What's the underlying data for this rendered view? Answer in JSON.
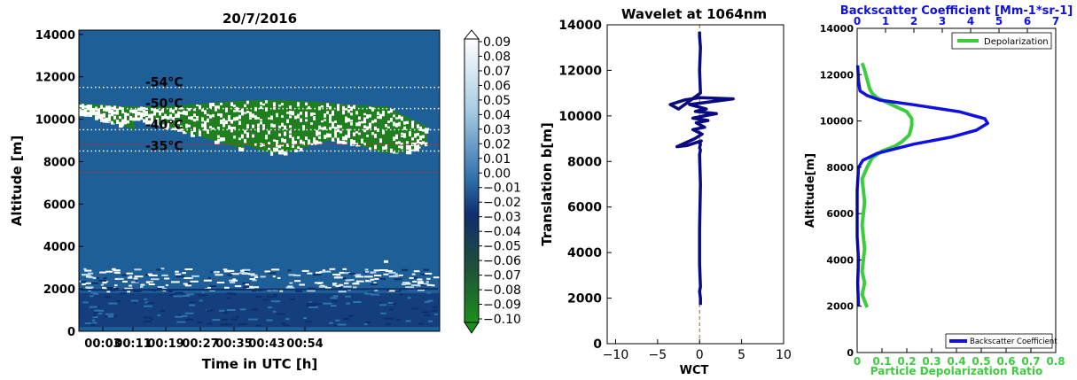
{
  "chart_data": [
    {
      "type": "heatmap",
      "title": "20/7/2016",
      "xlabel": "Time in UTC [h]",
      "ylabel": "Altitude [m]",
      "x_ticks": [
        "00:03",
        "00:11",
        "00:19",
        "00:27",
        "00:35",
        "00:43",
        "00:54"
      ],
      "y_ticks": [
        0,
        2000,
        4000,
        6000,
        8000,
        10000,
        12000,
        14000
      ],
      "ylim": [
        0,
        14200
      ],
      "colorbar_ticks": [
        "0.09",
        "0.08",
        "0.07",
        "0.06",
        "0.05",
        "0.04",
        "0.03",
        "0.02",
        "0.01",
        "0.00",
        "−0.01",
        "−0.02",
        "−0.03",
        "−0.04",
        "−0.05",
        "−0.06",
        "−0.07",
        "−0.08",
        "−0.09",
        "−0.10"
      ],
      "colorbar_range": [
        -0.1,
        0.1
      ],
      "temperature_lines": [
        {
          "label": "-54°C",
          "altitude": 11500
        },
        {
          "label": "-50°C",
          "altitude": 10500
        },
        {
          "label": "-40°C",
          "altitude": 9500
        },
        {
          "label": "-35°C",
          "altitude": 8500
        }
      ],
      "reference_lines_red": [
        8800,
        7500
      ],
      "colors": {
        "background": "#1e5f98",
        "positive": "#ffffff",
        "negative": "#1f7f1f",
        "dark": "#0c2f6b"
      }
    },
    {
      "type": "line",
      "title": "Wavelet at 1064nm",
      "xlabel": "WCT",
      "ylabel": "Translation b[m]",
      "x_ticks": [
        "−10",
        "−5",
        "0",
        "5",
        "10"
      ],
      "y_ticks": [
        0,
        2000,
        4000,
        6000,
        8000,
        10000,
        12000,
        14000
      ],
      "xlim": [
        -11,
        10
      ],
      "ylim": [
        0,
        14000
      ],
      "series": [
        {
          "color": "#0a0a80",
          "x": [
            0.1,
            0.1,
            0.0,
            0.1,
            0.0,
            0.0,
            0.1,
            0.0,
            0.1,
            0.0,
            0.1,
            0.0,
            0.2,
            -1.5,
            -2.7,
            -0.6,
            0.3,
            -0.8,
            0.6,
            -0.4,
            1.0,
            -0.8,
            0.5,
            2.0,
            -0.5,
            0.8,
            -1.2,
            4.0,
            0.0,
            -1.8,
            -3.5,
            -2.5,
            0.1,
            0.0,
            0.1,
            0.0,
            0.0
          ],
          "y": [
            1700,
            2000,
            2300,
            2500,
            3500,
            5000,
            7000,
            8300,
            8500,
            8600,
            8750,
            8800,
            8900,
            8700,
            8650,
            9000,
            9200,
            9400,
            9500,
            9700,
            9800,
            9900,
            10000,
            10100,
            10200,
            10300,
            10500,
            10750,
            10800,
            10700,
            10500,
            10300,
            11000,
            12000,
            13000,
            13500,
            13700
          ]
        }
      ],
      "reference_line_x": 0
    },
    {
      "type": "line",
      "title": "Backscatter Coefficient [Mm-1*sr-1]",
      "xlabel": "Particle Depolarization Ratio",
      "ylabel": "Altitude[m]",
      "x_ticks": [
        "0",
        "0.1",
        "0.2",
        "0.3",
        "0.4",
        "0.5",
        "0.6",
        "0.7",
        "0.8"
      ],
      "x2_ticks": [
        "0",
        "1",
        "2",
        "3",
        "4",
        "5",
        "6",
        "7"
      ],
      "y_ticks": [
        0,
        2000,
        4000,
        6000,
        8000,
        10000,
        12000,
        14000
      ],
      "xlim": [
        0,
        0.8
      ],
      "x2lim": [
        0,
        7
      ],
      "ylim": [
        0,
        14000
      ],
      "legend_top": "top-right",
      "legend_bottom": "bottom-right",
      "series": [
        {
          "name": "Depolarization",
          "color": "#3ecc3e",
          "x": [
            0.04,
            0.02,
            0.03,
            0.02,
            0.03,
            0.02,
            0.03,
            0.02,
            0.04,
            0.06,
            0.1,
            0.15,
            0.18,
            0.21,
            0.22,
            0.22,
            0.2,
            0.16,
            0.12,
            0.08,
            0.06,
            0.05,
            0.04,
            0.03,
            0.02
          ],
          "y": [
            1950,
            2500,
            3000,
            3500,
            4500,
            5500,
            6500,
            7500,
            8000,
            8400,
            8700,
            8900,
            9100,
            9400,
            9800,
            10100,
            10400,
            10600,
            10800,
            11000,
            11200,
            11400,
            11800,
            12200,
            12500
          ]
        },
        {
          "name": "Backscatter Coefficient",
          "color": "#1010e0",
          "axis": "top",
          "x": [
            0.05,
            0.02,
            0.05,
            0.0,
            0.0,
            0.0,
            0.05,
            0.2,
            0.7,
            2.0,
            3.3,
            4.2,
            4.6,
            4.5,
            3.6,
            2.0,
            0.8,
            0.35,
            0.1,
            0.05,
            0.02
          ],
          "y": [
            2000,
            3000,
            4000,
            5000,
            6000,
            7000,
            8000,
            8300,
            8600,
            9000,
            9300,
            9600,
            9900,
            10100,
            10400,
            10700,
            10900,
            11100,
            11300,
            11700,
            12400
          ]
        }
      ]
    }
  ]
}
